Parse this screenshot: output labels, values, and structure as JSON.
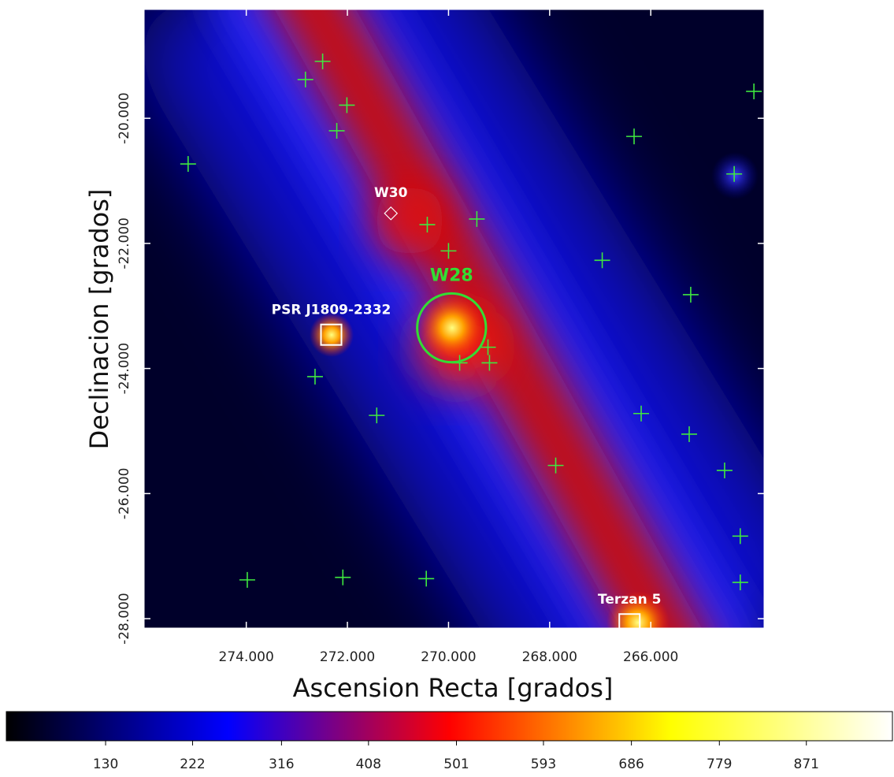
{
  "chart_data": {
    "type": "skymap",
    "xlabel": "Ascension Recta [grados]",
    "ylabel": "Declinacion [grados]",
    "xlim": [
      276.02,
      263.76
    ],
    "ylim": [
      -28.15,
      -18.26
    ],
    "xticks": [
      {
        "value": 274,
        "label": "274.000"
      },
      {
        "value": 272,
        "label": "272.000"
      },
      {
        "value": 270,
        "label": "270.000"
      },
      {
        "value": 268,
        "label": "268.000"
      },
      {
        "value": 266,
        "label": "266.000"
      }
    ],
    "yticks": [
      {
        "value": -20,
        "label": "-20.000"
      },
      {
        "value": -22,
        "label": "-22.000"
      },
      {
        "value": -24,
        "label": "-24.000"
      },
      {
        "value": -26,
        "label": "-26.000"
      },
      {
        "value": -28,
        "label": "-28.000"
      }
    ],
    "sources": {
      "color": "#3fe83f",
      "x": [
        272.49,
        272.83,
        272.01,
        272.21,
        275.15,
        266.33,
        263.96,
        264.35,
        270.42,
        269.44,
        270.0,
        266.96,
        265.21,
        269.22,
        269.78,
        269.19,
        272.64,
        271.42,
        266.19,
        265.24,
        267.88,
        264.54,
        264.23,
        273.98,
        272.09,
        270.44,
        264.23
      ],
      "y": [
        -19.09,
        -19.38,
        -19.79,
        -20.2,
        -20.73,
        -20.29,
        -19.57,
        -20.89,
        -21.7,
        -21.61,
        -22.12,
        -22.27,
        -22.82,
        -23.66,
        -23.91,
        -23.91,
        -24.13,
        -24.75,
        -24.72,
        -25.05,
        -25.55,
        -25.63,
        -26.68,
        -27.38,
        -27.34,
        -27.36,
        -27.42
      ]
    },
    "annotations": [
      {
        "label": "W30",
        "x": 271.14,
        "y": -21.52,
        "shape": "diamond",
        "color": "#ffffff"
      },
      {
        "label": "W28",
        "x": 269.94,
        "y": -23.35,
        "shape": "circle",
        "radius": 0.55,
        "color": "#33dd33"
      },
      {
        "label": "PSR J1809-2332",
        "x": 272.32,
        "y": -23.46,
        "shape": "square",
        "color": "#ffffff"
      },
      {
        "label": "Terzan 5",
        "x": 266.42,
        "y": -28.09,
        "shape": "square",
        "color": "#ffffff"
      }
    ],
    "colorbar": {
      "clim": [
        25,
        962
      ],
      "ticks": [
        130,
        222,
        316,
        408,
        501,
        593,
        686,
        779,
        871
      ],
      "colormap": [
        "#000000",
        "#0000ff",
        "#ff0000",
        "#ffff00",
        "#ffffff"
      ]
    }
  }
}
